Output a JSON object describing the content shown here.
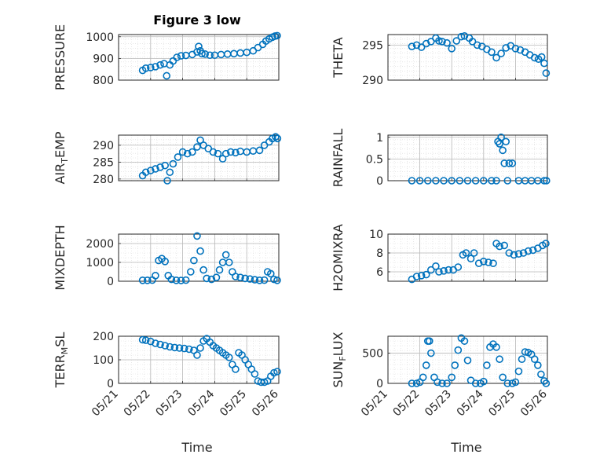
{
  "title": "Figure 3 low",
  "colors": {
    "marker": "#0072BD",
    "axis": "#262626",
    "grid": "#b8b8b8"
  },
  "chart_data": [
    {
      "type": "scatter",
      "ylabel": "PRESSURE",
      "ylim": [
        800,
        1010
      ],
      "yticks": [
        800,
        900,
        1000
      ],
      "xlim": [
        0,
        5
      ],
      "grid": true,
      "minor_grid": true,
      "x": [
        0.75,
        0.85,
        1.0,
        1.15,
        1.3,
        1.42,
        1.5,
        1.6,
        1.7,
        1.82,
        1.95,
        2.1,
        2.3,
        2.45,
        2.5,
        2.55,
        2.6,
        2.7,
        2.85,
        3.0,
        3.2,
        3.4,
        3.6,
        3.8,
        4.0,
        4.2,
        4.35,
        4.5,
        4.6,
        4.7,
        4.8,
        4.88,
        4.95
      ],
      "y": [
        845,
        855,
        858,
        862,
        870,
        876,
        820,
        870,
        888,
        905,
        912,
        914,
        918,
        930,
        955,
        935,
        922,
        920,
        915,
        915,
        918,
        920,
        922,
        925,
        928,
        935,
        950,
        965,
        980,
        990,
        998,
        1003,
        1005
      ]
    },
    {
      "type": "scatter",
      "ylabel": "THETA",
      "ylim": [
        290,
        296.5
      ],
      "yticks": [
        290,
        295
      ],
      "xlim": [
        0,
        5
      ],
      "grid": true,
      "minor_grid": true,
      "x": [
        0.75,
        0.9,
        1.05,
        1.2,
        1.35,
        1.5,
        1.6,
        1.7,
        1.85,
        2.0,
        2.15,
        2.3,
        2.4,
        2.55,
        2.65,
        2.8,
        2.95,
        3.1,
        3.25,
        3.4,
        3.55,
        3.7,
        3.85,
        4.0,
        4.15,
        4.3,
        4.45,
        4.6,
        4.72,
        4.82,
        4.9,
        4.96
      ],
      "y": [
        294.8,
        295.0,
        294.7,
        295.2,
        295.5,
        296.0,
        295.6,
        295.5,
        295.3,
        294.5,
        295.6,
        296.2,
        296.3,
        296.0,
        295.5,
        295.0,
        294.8,
        294.4,
        294.0,
        293.2,
        293.8,
        294.6,
        294.9,
        294.5,
        294.3,
        294.0,
        293.6,
        293.2,
        293.0,
        293.3,
        292.4,
        291.0
      ]
    },
    {
      "type": "scatter",
      "ylabel": "AIR_TEMP",
      "ylim": [
        279.5,
        293
      ],
      "yticks": [
        280,
        285,
        290
      ],
      "xlim": [
        0,
        5
      ],
      "grid": true,
      "minor_grid": true,
      "x": [
        0.75,
        0.85,
        1.0,
        1.15,
        1.3,
        1.45,
        1.52,
        1.6,
        1.7,
        1.85,
        2.0,
        2.15,
        2.3,
        2.45,
        2.55,
        2.65,
        2.8,
        2.95,
        3.1,
        3.25,
        3.35,
        3.5,
        3.65,
        3.8,
        4.0,
        4.2,
        4.4,
        4.55,
        4.7,
        4.8,
        4.9,
        4.96
      ],
      "y": [
        281.0,
        282.0,
        282.5,
        283.0,
        283.5,
        284.0,
        279.5,
        282.0,
        284.5,
        286.5,
        288.0,
        287.5,
        288.0,
        289.5,
        291.5,
        290.0,
        289.0,
        288.0,
        287.5,
        286.0,
        287.5,
        288.0,
        287.8,
        288.2,
        288.0,
        288.3,
        288.5,
        290.0,
        291.0,
        292.0,
        292.5,
        292.0
      ]
    },
    {
      "type": "scatter",
      "ylabel": "RAINFALL",
      "ylim": [
        0,
        1.05
      ],
      "yticks": [
        0,
        0.5,
        1
      ],
      "xlim": [
        0,
        5
      ],
      "grid": true,
      "minor_grid": true,
      "x": [
        0.75,
        1.0,
        1.25,
        1.5,
        1.75,
        2.0,
        2.25,
        2.5,
        2.75,
        3.0,
        3.25,
        3.4,
        3.45,
        3.5,
        3.55,
        3.6,
        3.65,
        3.7,
        3.75,
        3.8,
        3.9,
        4.1,
        4.3,
        4.5,
        4.7,
        4.9,
        4.97
      ],
      "y": [
        0,
        0,
        0,
        0,
        0,
        0,
        0,
        0,
        0,
        0,
        0,
        0,
        0.9,
        0.85,
        1.0,
        0.7,
        0.4,
        0.9,
        0,
        0.4,
        0.4,
        0,
        0,
        0,
        0,
        0,
        0
      ]
    },
    {
      "type": "scatter",
      "ylabel": "MIXDEPTH",
      "ylim": [
        0,
        2500
      ],
      "yticks": [
        0,
        1000,
        2000
      ],
      "xlim": [
        0,
        5
      ],
      "grid": true,
      "minor_grid": true,
      "x": [
        0.75,
        0.9,
        1.05,
        1.15,
        1.25,
        1.35,
        1.45,
        1.55,
        1.65,
        1.8,
        1.95,
        2.1,
        2.25,
        2.35,
        2.45,
        2.55,
        2.65,
        2.75,
        2.9,
        3.05,
        3.15,
        3.25,
        3.35,
        3.45,
        3.55,
        3.65,
        3.8,
        3.95,
        4.1,
        4.25,
        4.4,
        4.55,
        4.65,
        4.75,
        4.85,
        4.95
      ],
      "y": [
        50,
        50,
        60,
        300,
        1100,
        1200,
        1050,
        300,
        100,
        50,
        40,
        60,
        500,
        1100,
        2400,
        1600,
        600,
        150,
        100,
        200,
        600,
        1000,
        1400,
        1000,
        500,
        250,
        200,
        150,
        120,
        80,
        50,
        60,
        500,
        400,
        100,
        50
      ]
    },
    {
      "type": "scatter",
      "ylabel": "H2OMIXRA",
      "ylim": [
        5,
        10
      ],
      "yticks": [
        6,
        8,
        10
      ],
      "xlim": [
        0,
        5
      ],
      "grid": true,
      "minor_grid": true,
      "x": [
        0.75,
        0.9,
        1.05,
        1.2,
        1.35,
        1.5,
        1.6,
        1.75,
        1.9,
        2.05,
        2.2,
        2.35,
        2.45,
        2.6,
        2.7,
        2.85,
        3.0,
        3.15,
        3.3,
        3.4,
        3.5,
        3.65,
        3.8,
        3.95,
        4.1,
        4.25,
        4.4,
        4.55,
        4.7,
        4.85,
        4.95
      ],
      "y": [
        5.2,
        5.5,
        5.6,
        5.7,
        6.2,
        6.6,
        6.0,
        6.1,
        6.2,
        6.2,
        6.5,
        7.8,
        8.0,
        7.4,
        8.0,
        6.9,
        7.1,
        7.0,
        6.9,
        9.0,
        8.7,
        8.8,
        8.0,
        7.8,
        7.9,
        8.0,
        8.2,
        8.3,
        8.5,
        8.8,
        9.0
      ]
    },
    {
      "type": "scatter",
      "ylabel": "TERR_MSL",
      "ylim": [
        0,
        200
      ],
      "yticks": [
        0,
        100,
        200
      ],
      "xlim": [
        0,
        5
      ],
      "grid": true,
      "minor_grid": true,
      "x": [
        0.75,
        0.85,
        1.0,
        1.15,
        1.3,
        1.45,
        1.6,
        1.75,
        1.9,
        2.05,
        2.2,
        2.35,
        2.45,
        2.55,
        2.65,
        2.75,
        2.85,
        2.95,
        3.05,
        3.15,
        3.25,
        3.35,
        3.45,
        3.55,
        3.65,
        3.75,
        3.85,
        3.95,
        4.05,
        4.15,
        4.25,
        4.35,
        4.45,
        4.55,
        4.65,
        4.75,
        4.85,
        4.95
      ],
      "y": [
        185,
        183,
        178,
        170,
        165,
        160,
        155,
        152,
        150,
        148,
        145,
        140,
        120,
        150,
        180,
        190,
        175,
        160,
        150,
        140,
        130,
        120,
        110,
        80,
        60,
        130,
        120,
        100,
        80,
        60,
        40,
        10,
        5,
        5,
        10,
        30,
        45,
        50
      ]
    },
    {
      "type": "scatter",
      "ylabel": "SUN_FLUX",
      "ylim": [
        0,
        780
      ],
      "yticks": [
        0,
        500
      ],
      "xlim": [
        0,
        5
      ],
      "grid": true,
      "minor_grid": true,
      "x": [
        0.75,
        0.9,
        1.0,
        1.1,
        1.2,
        1.25,
        1.3,
        1.35,
        1.45,
        1.55,
        1.7,
        1.85,
        2.0,
        2.1,
        2.2,
        2.3,
        2.4,
        2.5,
        2.6,
        2.75,
        2.9,
        3.0,
        3.1,
        3.2,
        3.3,
        3.4,
        3.5,
        3.6,
        3.75,
        3.9,
        4.0,
        4.1,
        4.2,
        4.3,
        4.4,
        4.5,
        4.6,
        4.7,
        4.8,
        4.9,
        4.96
      ],
      "y": [
        0,
        0,
        20,
        100,
        300,
        700,
        700,
        500,
        100,
        20,
        0,
        0,
        100,
        300,
        550,
        750,
        700,
        380,
        50,
        0,
        0,
        30,
        300,
        600,
        650,
        600,
        400,
        100,
        0,
        0,
        20,
        200,
        400,
        520,
        510,
        480,
        400,
        300,
        150,
        40,
        0
      ]
    }
  ],
  "xticks": [
    "05/21",
    "05/22",
    "05/23",
    "05/24",
    "05/25",
    "05/26"
  ],
  "xlabel": "Time"
}
